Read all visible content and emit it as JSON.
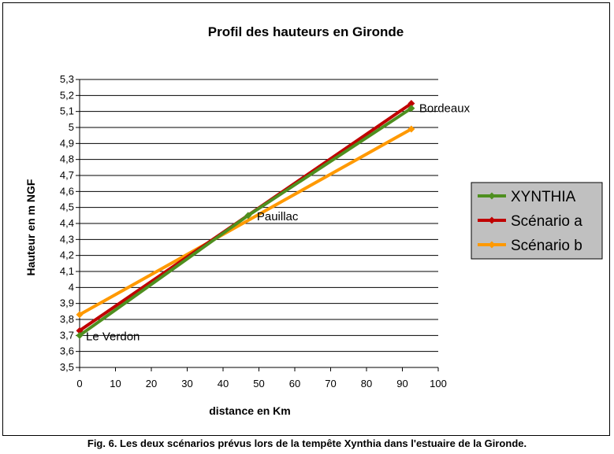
{
  "chart_data": {
    "type": "line",
    "title": "Profil des hauteurs en Gironde",
    "xlabel": "distance en Km",
    "ylabel": "Hauteur en m NGF",
    "xlim": [
      0,
      100
    ],
    "ylim": [
      3.5,
      5.3
    ],
    "x_ticks": [
      "0",
      "10",
      "20",
      "30",
      "40",
      "50",
      "60",
      "70",
      "80",
      "90",
      "100"
    ],
    "y_ticks": [
      "3,5",
      "3,6",
      "3,7",
      "3,8",
      "3,9",
      "4",
      "4,1",
      "4,2",
      "4,3",
      "4,4",
      "4,5",
      "4,6",
      "4,7",
      "4,8",
      "4,9",
      "5",
      "5,1",
      "5,2",
      "5,3"
    ],
    "grid": "horizontal",
    "legend_position": "right",
    "series": [
      {
        "name": "XYNTHIA",
        "color": "#4e8f1f",
        "x": [
          0,
          47,
          92.5
        ],
        "y": [
          3.7,
          4.45,
          5.12
        ]
      },
      {
        "name": "Scénario a",
        "color": "#c00000",
        "x": [
          0,
          92.5
        ],
        "y": [
          3.73,
          5.15
        ]
      },
      {
        "name": "Scénario b",
        "color": "#ff9900",
        "x": [
          0,
          92.5
        ],
        "y": [
          3.83,
          4.99
        ]
      }
    ],
    "annotations": [
      {
        "text": "Le Verdon",
        "x": 0,
        "y": 3.7
      },
      {
        "text": "Pauillac",
        "x": 47,
        "y": 4.45
      },
      {
        "text": "Bordeaux",
        "x": 92.5,
        "y": 5.12
      }
    ]
  },
  "caption": "Fig. 6. Les deux scénarios prévus lors de la tempête Xynthia dans l'estuaire de la Gironde."
}
